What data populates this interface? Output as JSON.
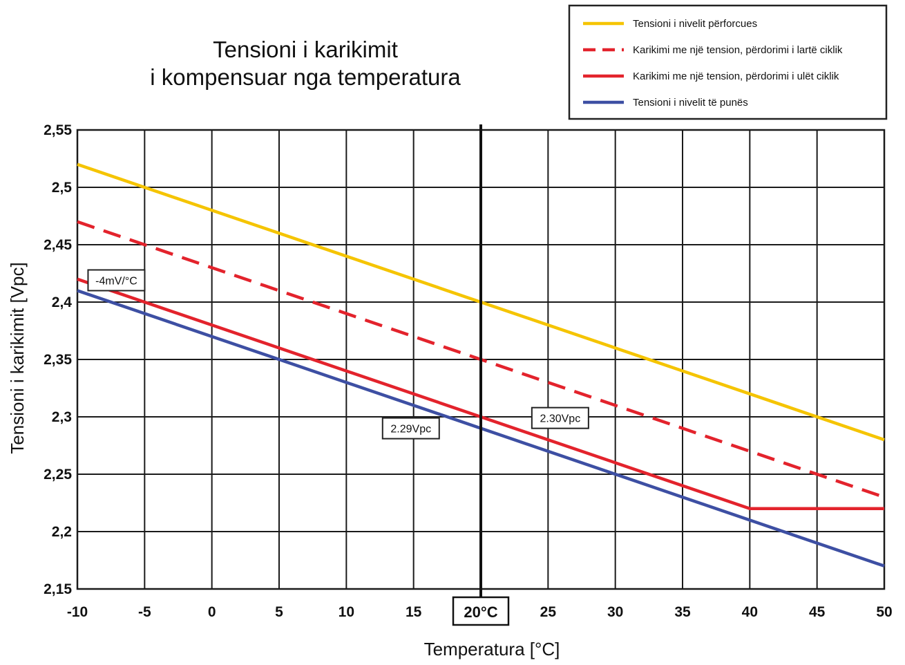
{
  "chart_data": {
    "type": "line",
    "title": [
      "Tensioni i karikimit",
      "i kompensuar nga temperatura"
    ],
    "xlabel": "Temperatura [°C]",
    "ylabel": "Tensioni i karikimit [Vpc]",
    "xlim": [
      -10,
      50
    ],
    "ylim": [
      2.15,
      2.55
    ],
    "xticks": [
      "-10",
      "-5",
      "0",
      "5",
      "10",
      "15",
      "20",
      "25",
      "30",
      "35",
      "40",
      "45",
      "50"
    ],
    "yticks": [
      "2,15",
      "2,2",
      "2,25",
      "2,3",
      "2,35",
      "2,4",
      "2,45",
      "2,5",
      "2,55"
    ],
    "xtick_values": [
      -10,
      -5,
      0,
      5,
      10,
      15,
      20,
      25,
      30,
      35,
      40,
      45,
      50
    ],
    "ytick_values": [
      2.15,
      2.2,
      2.25,
      2.3,
      2.35,
      2.4,
      2.45,
      2.5,
      2.55
    ],
    "grid": true,
    "legend_position": "top-right",
    "highlight_x": {
      "value": 20,
      "label": "20°C"
    },
    "series": [
      {
        "name": "Tensioni i nivelit përforcues",
        "color": "#f5c400",
        "dash": false,
        "x": [
          -10,
          50
        ],
        "y": [
          2.52,
          2.28
        ]
      },
      {
        "name": "Karikimi me një tension, përdorimi i lartë ciklik",
        "color": "#e3232c",
        "dash": true,
        "x": [
          -10,
          50
        ],
        "y": [
          2.47,
          2.23
        ]
      },
      {
        "name": "Karikimi me një tension, përdorimi i ulët ciklik",
        "color": "#e3232c",
        "dash": false,
        "x": [
          -10,
          40,
          50
        ],
        "y": [
          2.42,
          2.22,
          2.22
        ]
      },
      {
        "name": "Tensioni i nivelit të punës",
        "color": "#3d4fa3",
        "dash": false,
        "x": [
          -10,
          50
        ],
        "y": [
          2.41,
          2.17
        ]
      }
    ],
    "annotations": [
      {
        "text": "-4mV/°C",
        "x": -7.1,
        "y": 2.419
      },
      {
        "text": "2.29Vpc",
        "x": 14.8,
        "y": 2.29
      },
      {
        "text": "2.30Vpc",
        "x": 25.9,
        "y": 2.299
      }
    ]
  }
}
